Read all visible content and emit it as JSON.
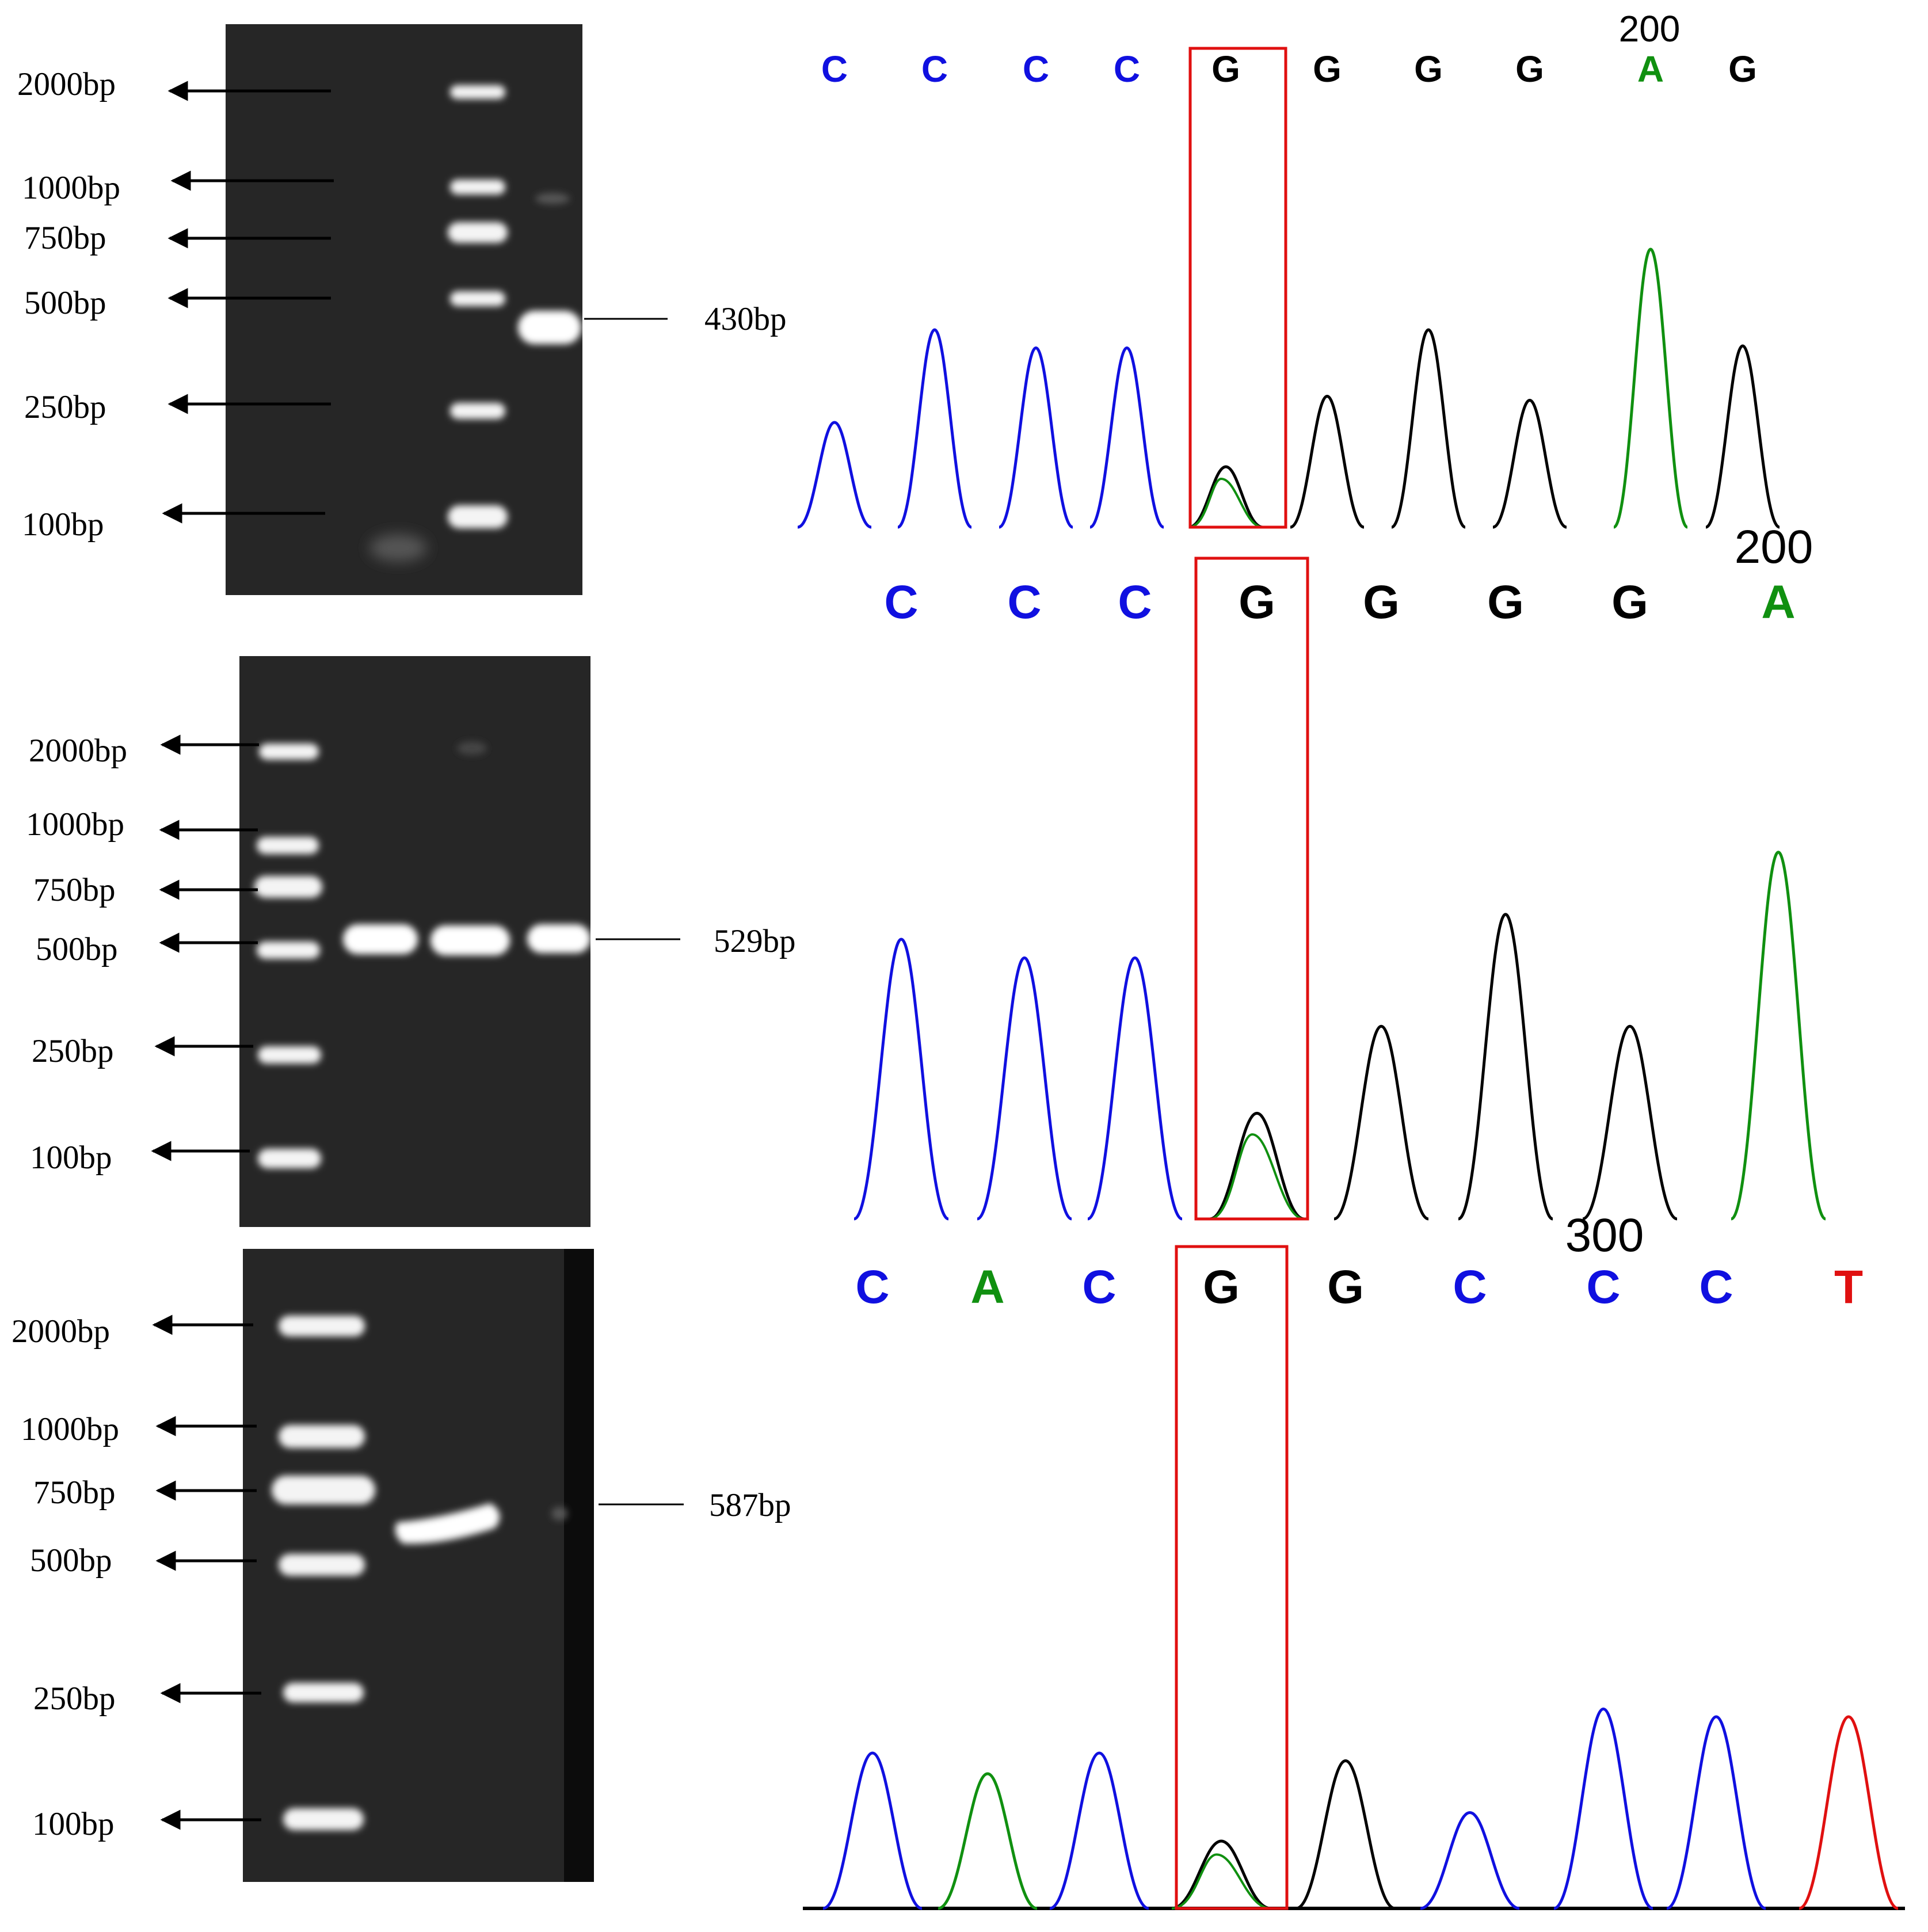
{
  "colors": {
    "A": "#109010",
    "C": "#1010e0",
    "G": "#000000",
    "T": "#e01010",
    "highlight": "#e01010",
    "gel_background": "#262626"
  },
  "panels": [
    {
      "ladder": [
        "2000bp",
        "1000bp",
        "750bp",
        "500bp",
        "250bp",
        "100bp"
      ],
      "product_label": "430bp",
      "position_label": "200",
      "bases": [
        "C",
        "C",
        "C",
        "C",
        "G",
        "G",
        "G",
        "G",
        "A",
        "G"
      ]
    },
    {
      "ladder": [
        "2000bp",
        "1000bp",
        "750bp",
        "500bp",
        "250bp",
        "100bp"
      ],
      "product_label": "529bp",
      "position_label": "200",
      "bases": [
        "C",
        "C",
        "C",
        "G",
        "G",
        "G",
        "G",
        "A"
      ]
    },
    {
      "ladder": [
        "2000bp",
        "1000bp",
        "750bp",
        "500bp",
        "250bp",
        "100bp"
      ],
      "product_label": "587bp",
      "position_label": "300",
      "bases": [
        "C",
        "A",
        "C",
        "G",
        "G",
        "C",
        "C",
        "C",
        "T"
      ]
    }
  ]
}
